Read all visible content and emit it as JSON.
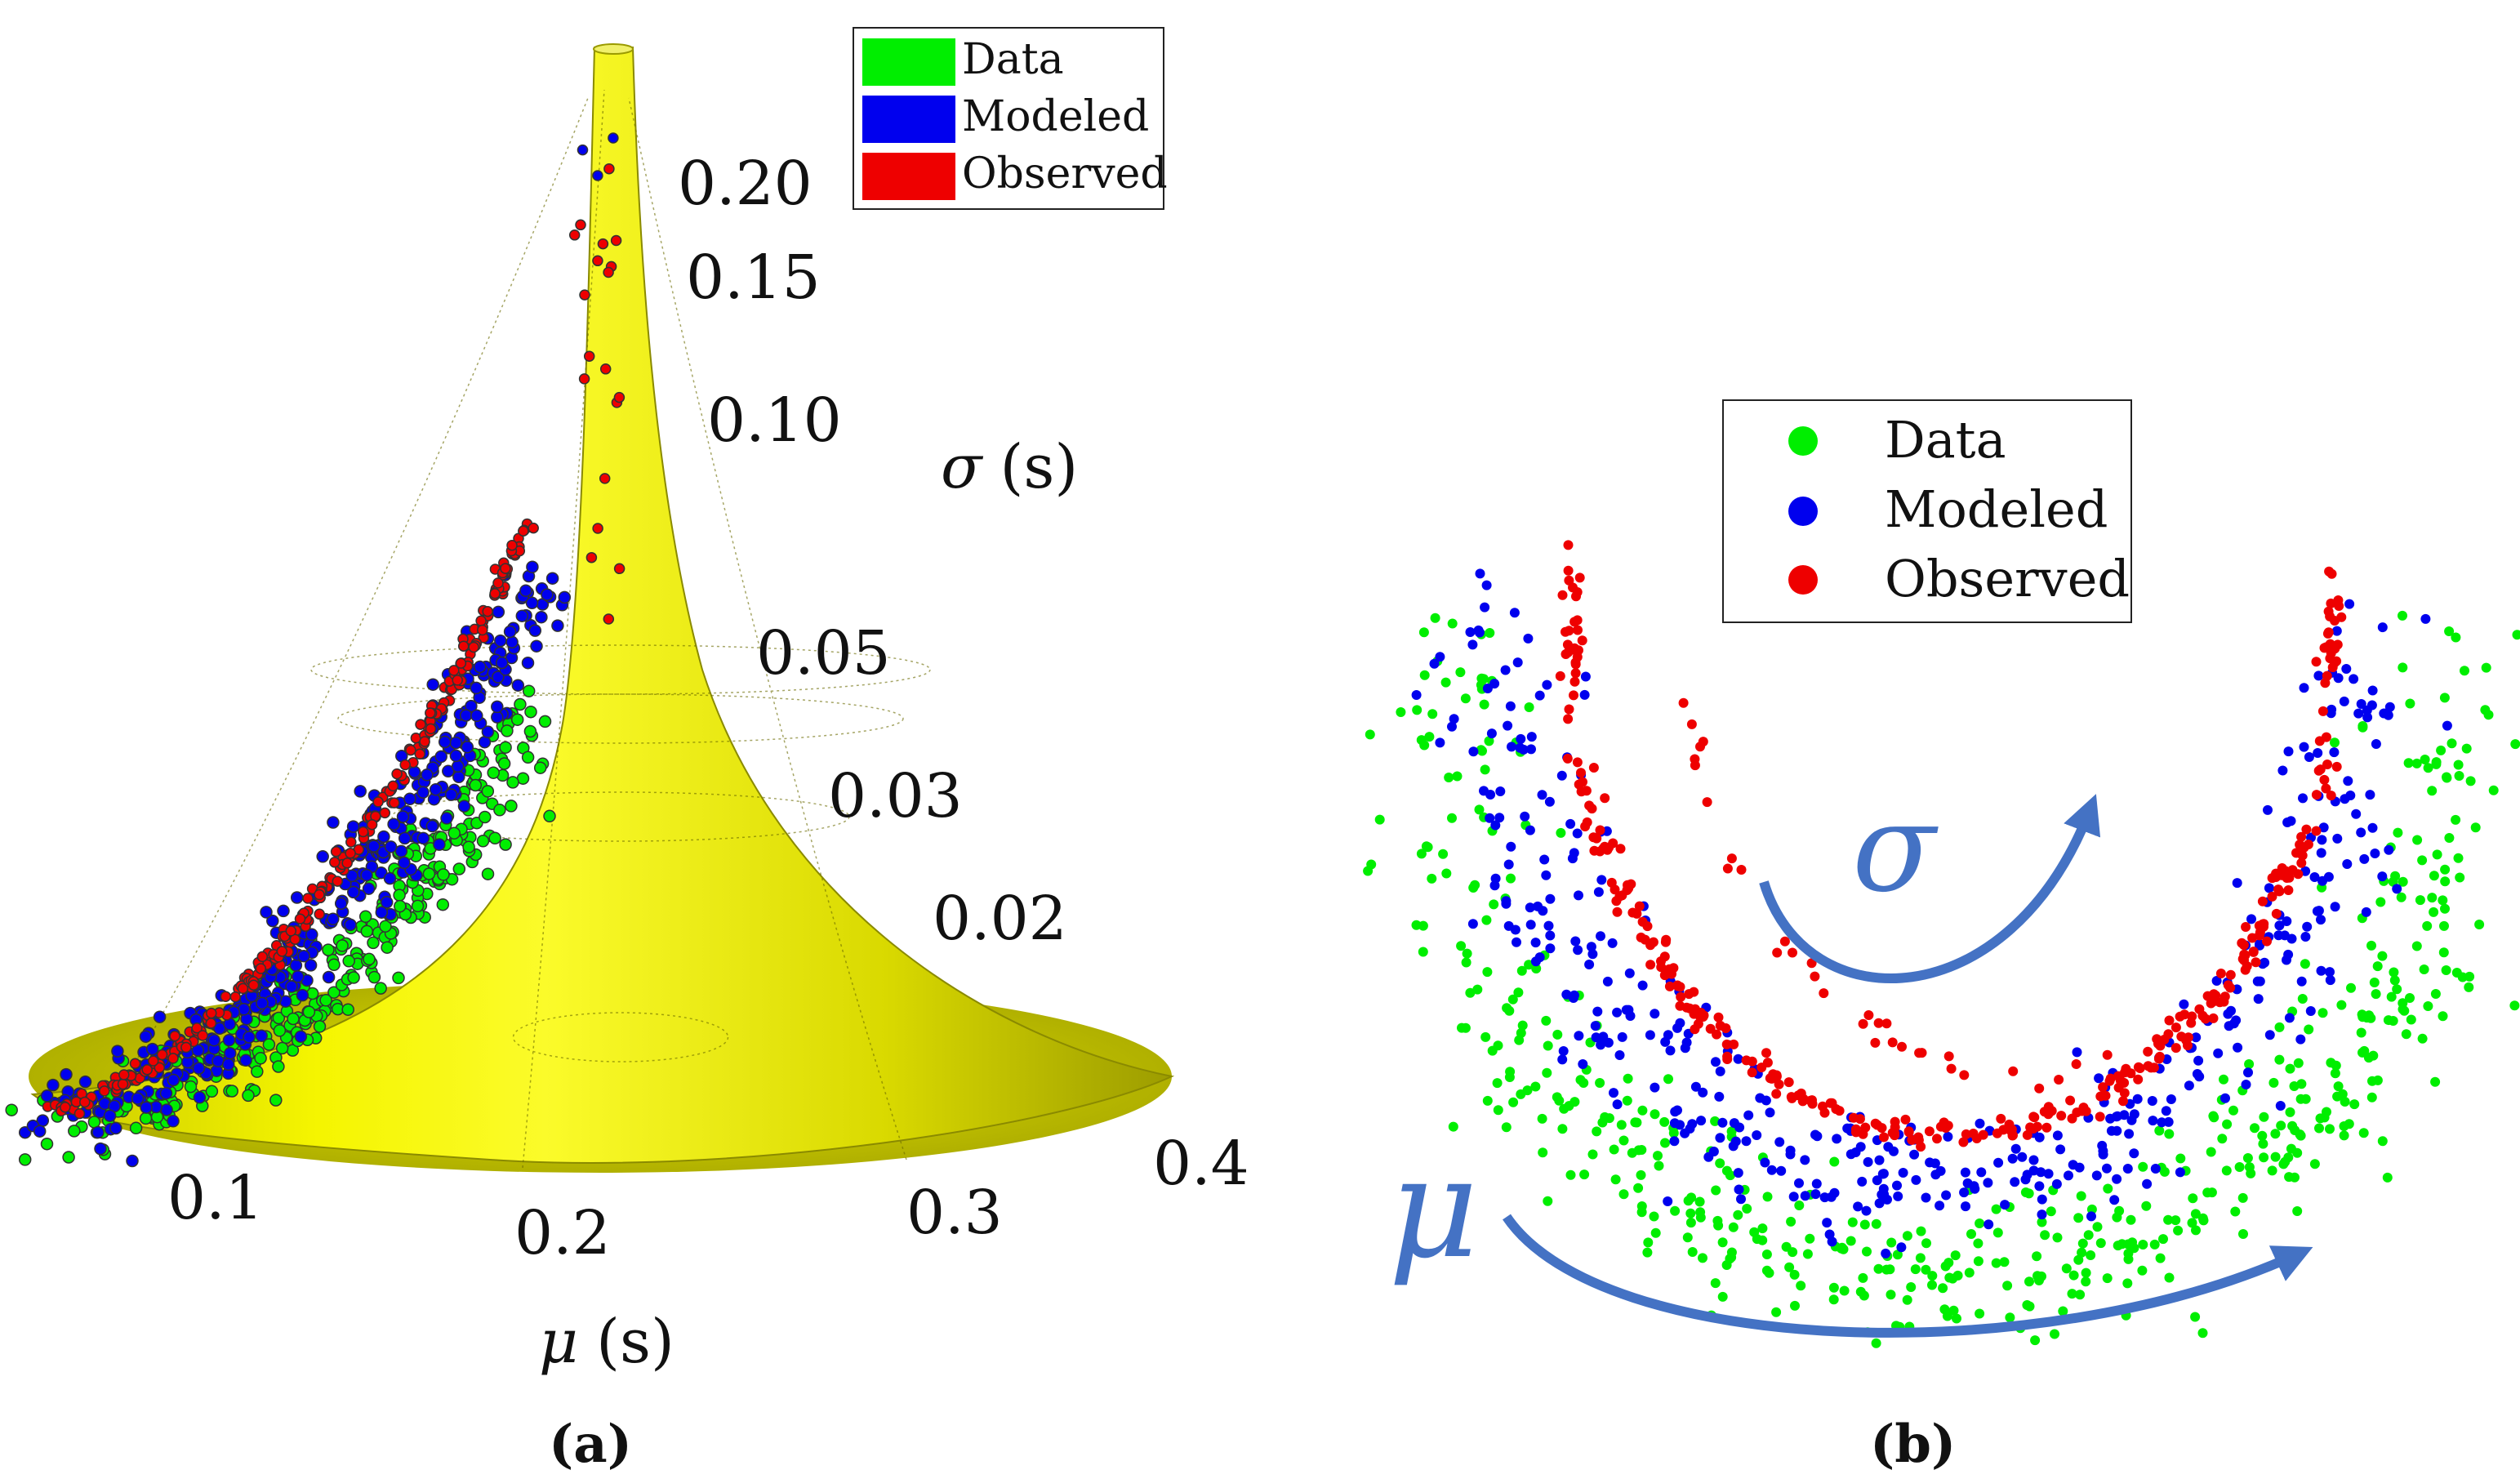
{
  "chart_data": [
    {
      "panel": "(a)",
      "type": "scatter",
      "projection": "3d-surface",
      "xlabel_symbol": "μ",
      "xlabel_unit": "(s)",
      "ylabel_symbol": "σ",
      "ylabel_unit": "(s)",
      "x_ticks": [
        "0.1",
        "0.2",
        "0.3",
        "0.4"
      ],
      "y_ticks": [
        "0.20",
        "0.15",
        "0.10",
        "0.05",
        "0.03",
        "0.02"
      ],
      "xlim": [
        0.05,
        0.42
      ],
      "ylim": [
        0.01,
        0.23
      ],
      "legend": {
        "position": "top-right",
        "entries": [
          {
            "label": "Data",
            "color": "#00ee00"
          },
          {
            "label": "Modeled",
            "color": "#0000ee"
          },
          {
            "label": "Observed",
            "color": "#ee0000"
          }
        ]
      },
      "surface_color": "#e6e600",
      "series": [
        {
          "name": "Data",
          "color": "#00ee00",
          "count": 320,
          "approx_mu_range": [
            0.06,
            0.25
          ],
          "approx_sigma_range": [
            0.012,
            0.09
          ]
        },
        {
          "name": "Modeled",
          "color": "#0000ee",
          "count": 380,
          "approx_mu_range": [
            0.06,
            0.24
          ],
          "approx_sigma_range": [
            0.012,
            0.21
          ]
        },
        {
          "name": "Observed",
          "color": "#ee0000",
          "count": 260,
          "approx_mu_range": [
            0.06,
            0.23
          ],
          "approx_sigma_range": [
            0.012,
            0.21
          ]
        }
      ]
    },
    {
      "panel": "(b)",
      "type": "scatter",
      "projection": "2d-embedding",
      "legend": {
        "position": "top-center",
        "entries": [
          {
            "label": "Data",
            "color": "#00ee00"
          },
          {
            "label": "Modeled",
            "color": "#0000ee"
          },
          {
            "label": "Observed",
            "color": "#ee0000"
          }
        ]
      },
      "annotations": [
        {
          "text": "σ",
          "meaning": "direction of increasing sigma",
          "color": "#4472c4"
        },
        {
          "text": "μ",
          "meaning": "direction of increasing mu",
          "color": "#4472c4"
        }
      ],
      "series": [
        {
          "name": "Data",
          "color": "#00ee00",
          "count": 520
        },
        {
          "name": "Modeled",
          "color": "#0000ee",
          "count": 420
        },
        {
          "name": "Observed",
          "color": "#ee0000",
          "count": 330
        }
      ]
    }
  ],
  "labels": {
    "panel_a": "(a)",
    "panel_b": "(b)"
  }
}
